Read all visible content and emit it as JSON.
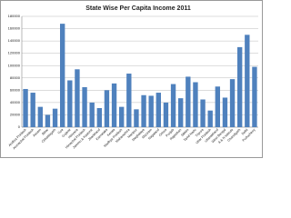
{
  "chart_data": {
    "type": "bar",
    "title": "State Wise Per Capita Income 2011",
    "categories": [
      "Andhra Pradesh",
      "Arunachal Pradesh",
      "Assam",
      "Bihar",
      "Chhattisgarh",
      "Goa",
      "Gujarat",
      "Haryana",
      "Himachal Pradesh",
      "Jammu & Kashmir",
      "Jharkhand",
      "Karnataka",
      "Kerala",
      "Madhya Pradesh",
      "Maharashtra",
      "Manipur",
      "Meghalaya",
      "Mizoram",
      "Nagaland",
      "Orissa",
      "Punjab",
      "Rajasthan",
      "Sikkim",
      "Tamil Nadu",
      "Tripura",
      "Uttar Pradesh",
      "Uttarakhand",
      "West Bengal",
      "A & N Islands",
      "Chandigarh",
      "Delhi",
      "Puducherry"
    ],
    "values": [
      62000,
      56000,
      33000,
      20000,
      30000,
      168000,
      76000,
      94000,
      65000,
      40000,
      31000,
      60000,
      71000,
      33000,
      87000,
      29000,
      52000,
      51000,
      56000,
      40000,
      70000,
      47000,
      82000,
      73000,
      45000,
      27000,
      66000,
      48000,
      78000,
      130000,
      150000,
      98000
    ],
    "color": "#4f81bd",
    "ylim": [
      0,
      180000
    ],
    "yticks": [
      0,
      20000,
      40000,
      60000,
      80000,
      100000,
      120000,
      140000,
      160000,
      180000
    ],
    "grid": true
  }
}
